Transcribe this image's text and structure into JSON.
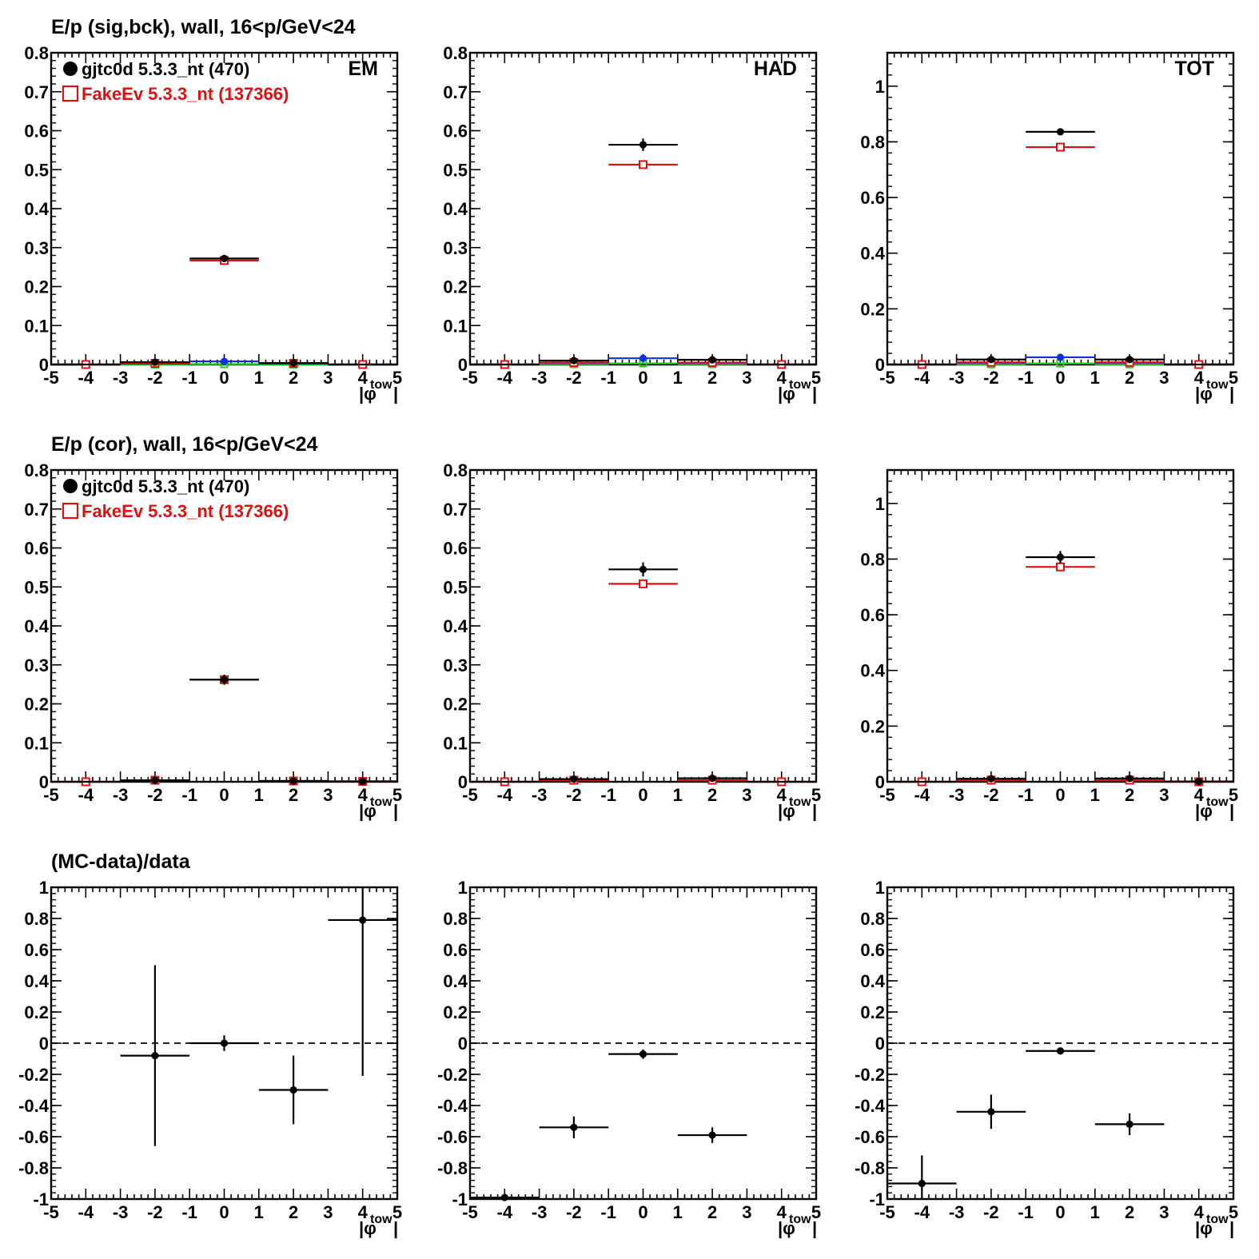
{
  "rows": [
    {
      "title": "E/p (sig,bck), wall, 16<p/GeV<24"
    },
    {
      "title": "E/p (cor), wall, 16<p/GeV<24"
    },
    {
      "title": "(MC-data)/data"
    }
  ],
  "legend": [
    {
      "label": "gjtc0d 5.3.3_nt (470)",
      "color": "#000000",
      "marker": "filled-circle"
    },
    {
      "label": "FakeEv 5.3.3_nt (137366)",
      "color": "#e01010",
      "marker": "open-square"
    }
  ],
  "x_axis_label": {
    "main": "|φ",
    "sub": "tow",
    "close": "|"
  },
  "colors": {
    "data": "#000000",
    "mc": "#e01010",
    "bck_data": "#1030e0",
    "bck_mc": "#20d020",
    "reference_line": "#000000"
  },
  "chart_data": [
    {
      "type": "scatter",
      "row": 0,
      "col": 0,
      "corner_label": "EM",
      "xlim": [
        -5,
        5
      ],
      "ylim": [
        0,
        0.8
      ],
      "xticks": [
        -5,
        -4,
        -3,
        -2,
        -1,
        0,
        1,
        2,
        3,
        4,
        5
      ],
      "yticks": [
        0,
        0.1,
        0.2,
        0.3,
        0.4,
        0.5,
        0.6,
        0.7,
        0.8
      ],
      "yticklabels": [
        "0",
        "0.1",
        "0.2",
        "0.3",
        "0.4",
        "0.5",
        "0.6",
        "0.7",
        "0.8"
      ],
      "show_legend": true,
      "series": [
        {
          "role": "data",
          "x": [
            -4,
            -2,
            0,
            2,
            4
          ],
          "y": [
            0,
            0.006,
            0.272,
            0.004,
            0
          ],
          "yerr": [
            0,
            0.002,
            0.006,
            0.002,
            0
          ]
        },
        {
          "role": "mc",
          "x": [
            -4,
            -2,
            0,
            2,
            4
          ],
          "y": [
            0,
            0.003,
            0.267,
            0.003,
            0
          ],
          "yerr": [
            0,
            0,
            0.002,
            0,
            0
          ]
        },
        {
          "role": "bck_data",
          "x": [
            -4,
            -2,
            0,
            2,
            4
          ],
          "y": [
            0,
            0.002,
            0.008,
            0.002,
            0
          ],
          "yerr": [
            0,
            0,
            0.001,
            0,
            0
          ]
        },
        {
          "role": "bck_mc",
          "x": [
            -4,
            -2,
            0,
            2,
            4
          ],
          "y": [
            0,
            0,
            0.001,
            0,
            0
          ],
          "yerr": [
            0,
            0,
            0,
            0,
            0
          ]
        }
      ]
    },
    {
      "type": "scatter",
      "row": 0,
      "col": 1,
      "corner_label": "HAD",
      "xlim": [
        -5,
        5
      ],
      "ylim": [
        0,
        0.8
      ],
      "xticks": [
        -5,
        -4,
        -3,
        -2,
        -1,
        0,
        1,
        2,
        3,
        4,
        5
      ],
      "yticks": [
        0,
        0.1,
        0.2,
        0.3,
        0.4,
        0.5,
        0.6,
        0.7,
        0.8
      ],
      "yticklabels": [
        "0",
        "0.1",
        "0.2",
        "0.3",
        "0.4",
        "0.5",
        "0.6",
        "0.7",
        "0.8"
      ],
      "show_legend": false,
      "series": [
        {
          "role": "data",
          "x": [
            -4,
            -2,
            0,
            2,
            4
          ],
          "y": [
            0,
            0.01,
            0.564,
            0.012,
            0
          ],
          "yerr": [
            0,
            0.003,
            0.016,
            0.003,
            0
          ]
        },
        {
          "role": "mc",
          "x": [
            -4,
            -2,
            0,
            2,
            4
          ],
          "y": [
            0,
            0.005,
            0.513,
            0.005,
            0
          ],
          "yerr": [
            0,
            0,
            0.003,
            0,
            0
          ]
        },
        {
          "role": "bck_data",
          "x": [
            -4,
            -2,
            0,
            2,
            4
          ],
          "y": [
            0,
            0.004,
            0.016,
            0.004,
            0
          ],
          "yerr": [
            0,
            0,
            0.002,
            0,
            0
          ]
        },
        {
          "role": "bck_mc",
          "x": [
            -4,
            -2,
            0,
            2,
            4
          ],
          "y": [
            0,
            0.001,
            0.003,
            0.001,
            0
          ],
          "yerr": [
            0,
            0,
            0,
            0,
            0
          ]
        }
      ]
    },
    {
      "type": "scatter",
      "row": 0,
      "col": 2,
      "corner_label": "TOT",
      "xlim": [
        -5,
        5
      ],
      "ylim": [
        0,
        1.12
      ],
      "xticks": [
        -5,
        -4,
        -3,
        -2,
        -1,
        0,
        1,
        2,
        3,
        4,
        5
      ],
      "yticks": [
        0,
        0.2,
        0.4,
        0.6,
        0.8,
        1
      ],
      "yticklabels": [
        "0",
        "0.2",
        "0.4",
        "0.6",
        "0.8",
        "1"
      ],
      "show_legend": false,
      "series": [
        {
          "role": "data",
          "x": [
            -4,
            -2,
            0,
            2,
            4
          ],
          "y": [
            0,
            0.018,
            0.836,
            0.018,
            0
          ],
          "yerr": [
            0,
            0.003,
            0.008,
            0.003,
            0
          ]
        },
        {
          "role": "mc",
          "x": [
            -4,
            -2,
            0,
            2,
            4
          ],
          "y": [
            0,
            0.008,
            0.781,
            0.008,
            0
          ],
          "yerr": [
            0,
            0,
            0.004,
            0,
            0
          ]
        },
        {
          "role": "bck_data",
          "x": [
            -4,
            -2,
            0,
            2,
            4
          ],
          "y": [
            0,
            0.006,
            0.026,
            0.006,
            0
          ],
          "yerr": [
            0,
            0,
            0.003,
            0,
            0
          ]
        },
        {
          "role": "bck_mc",
          "x": [
            -4,
            -2,
            0,
            2,
            4
          ],
          "y": [
            0,
            0.001,
            0.004,
            0.001,
            0
          ],
          "yerr": [
            0,
            0,
            0,
            0,
            0
          ]
        }
      ]
    },
    {
      "type": "scatter",
      "row": 1,
      "col": 0,
      "corner_label": "",
      "xlim": [
        -5,
        5
      ],
      "ylim": [
        0,
        0.8
      ],
      "xticks": [
        -5,
        -4,
        -3,
        -2,
        -1,
        0,
        1,
        2,
        3,
        4,
        5
      ],
      "yticks": [
        0,
        0.1,
        0.2,
        0.3,
        0.4,
        0.5,
        0.6,
        0.7,
        0.8
      ],
      "yticklabels": [
        "0",
        "0.1",
        "0.2",
        "0.3",
        "0.4",
        "0.5",
        "0.6",
        "0.7",
        "0.8"
      ],
      "show_legend": true,
      "series": [
        {
          "role": "data",
          "x": [
            -4,
            -2,
            0,
            2,
            4
          ],
          "y": [
            0,
            0.004,
            0.262,
            0.002,
            0.001
          ],
          "yerr": [
            0,
            0.003,
            0.013,
            0.002,
            0.002
          ]
        },
        {
          "role": "mc",
          "x": [
            -4,
            -2,
            0,
            2,
            4
          ],
          "y": [
            0,
            0.004,
            0.262,
            0.002,
            0.001
          ],
          "yerr": [
            0,
            0,
            0.002,
            0,
            0
          ]
        }
      ]
    },
    {
      "type": "scatter",
      "row": 1,
      "col": 1,
      "corner_label": "",
      "xlim": [
        -5,
        5
      ],
      "ylim": [
        0,
        0.8
      ],
      "xticks": [
        -5,
        -4,
        -3,
        -2,
        -1,
        0,
        1,
        2,
        3,
        4,
        5
      ],
      "yticks": [
        0,
        0.1,
        0.2,
        0.3,
        0.4,
        0.5,
        0.6,
        0.7,
        0.8
      ],
      "yticklabels": [
        "0",
        "0.1",
        "0.2",
        "0.3",
        "0.4",
        "0.5",
        "0.6",
        "0.7",
        "0.8"
      ],
      "show_legend": false,
      "series": [
        {
          "role": "data",
          "x": [
            -4,
            -2,
            0,
            2,
            4
          ],
          "y": [
            0,
            0.007,
            0.545,
            0.009,
            0
          ],
          "yerr": [
            0,
            0.004,
            0.018,
            0.004,
            0
          ]
        },
        {
          "role": "mc",
          "x": [
            -4,
            -2,
            0,
            2,
            4
          ],
          "y": [
            0,
            0.004,
            0.508,
            0.004,
            0
          ],
          "yerr": [
            0,
            0,
            0.003,
            0,
            0
          ]
        }
      ]
    },
    {
      "type": "scatter",
      "row": 1,
      "col": 2,
      "corner_label": "",
      "xlim": [
        -5,
        5
      ],
      "ylim": [
        0,
        1.12
      ],
      "xticks": [
        -5,
        -4,
        -3,
        -2,
        -1,
        0,
        1,
        2,
        3,
        4,
        5
      ],
      "yticks": [
        0,
        0.2,
        0.4,
        0.6,
        0.8,
        1
      ],
      "yticklabels": [
        "0",
        "0.2",
        "0.4",
        "0.6",
        "0.8",
        "1"
      ],
      "show_legend": false,
      "series": [
        {
          "role": "data",
          "x": [
            -4,
            -2,
            0,
            2,
            4
          ],
          "y": [
            0,
            0.011,
            0.807,
            0.012,
            0.001
          ],
          "yerr": [
            0,
            0.005,
            0.022,
            0.005,
            0
          ]
        },
        {
          "role": "mc",
          "x": [
            -4,
            -2,
            0,
            2,
            4
          ],
          "y": [
            0,
            0.006,
            0.772,
            0.006,
            0
          ],
          "yerr": [
            0,
            0,
            0.004,
            0,
            0
          ]
        }
      ]
    },
    {
      "type": "scatter",
      "row": 2,
      "col": 0,
      "corner_label": "",
      "xlim": [
        -5,
        5
      ],
      "ylim": [
        -1,
        1
      ],
      "xticks": [
        -5,
        -4,
        -3,
        -2,
        -1,
        0,
        1,
        2,
        3,
        4,
        5
      ],
      "yticks": [
        -1,
        -0.8,
        -0.6,
        -0.4,
        -0.2,
        0,
        0.2,
        0.4,
        0.6,
        0.8,
        1
      ],
      "yticklabels": [
        "-1",
        "-0.8",
        "-0.6",
        "-0.4",
        "-0.2",
        "0",
        "0.2",
        "0.4",
        "0.6",
        "0.8",
        "1"
      ],
      "show_legend": false,
      "reference_line": 0,
      "series": [
        {
          "role": "ratio",
          "x": [
            -2,
            0,
            2,
            4
          ],
          "y": [
            -0.08,
            0.0,
            -0.3,
            0.79
          ],
          "yerr": [
            0.58,
            0.05,
            0.22,
            1.0
          ]
        }
      ]
    },
    {
      "type": "scatter",
      "row": 2,
      "col": 1,
      "corner_label": "",
      "xlim": [
        -5,
        5
      ],
      "ylim": [
        -1,
        1
      ],
      "xticks": [
        -5,
        -4,
        -3,
        -2,
        -1,
        0,
        1,
        2,
        3,
        4,
        5
      ],
      "yticks": [
        -1,
        -0.8,
        -0.6,
        -0.4,
        -0.2,
        0,
        0.2,
        0.4,
        0.6,
        0.8,
        1
      ],
      "yticklabels": [
        "-1",
        "-0.8",
        "-0.6",
        "-0.4",
        "-0.2",
        "0",
        "0.2",
        "0.4",
        "0.6",
        "0.8",
        "1"
      ],
      "show_legend": false,
      "reference_line": 0,
      "series": [
        {
          "role": "ratio",
          "x": [
            -4,
            -2,
            0,
            2
          ],
          "y": [
            -0.99,
            -0.54,
            -0.07,
            -0.59
          ],
          "yerr": [
            0.01,
            0.07,
            0.03,
            0.05
          ]
        }
      ]
    },
    {
      "type": "scatter",
      "row": 2,
      "col": 2,
      "corner_label": "",
      "xlim": [
        -5,
        5
      ],
      "ylim": [
        -1,
        1
      ],
      "xticks": [
        -5,
        -4,
        -3,
        -2,
        -1,
        0,
        1,
        2,
        3,
        4,
        5
      ],
      "yticks": [
        -1,
        -0.8,
        -0.6,
        -0.4,
        -0.2,
        0,
        0.2,
        0.4,
        0.6,
        0.8,
        1
      ],
      "yticklabels": [
        "-1",
        "-0.8",
        "-0.6",
        "-0.4",
        "-0.2",
        "0",
        "0.2",
        "0.4",
        "0.6",
        "0.8",
        "1"
      ],
      "show_legend": false,
      "reference_line": 0,
      "series": [
        {
          "role": "ratio",
          "x": [
            -4,
            -2,
            0,
            2
          ],
          "y": [
            -0.9,
            -0.44,
            -0.05,
            -0.52
          ],
          "yerr": [
            0.18,
            0.11,
            0.02,
            0.07
          ]
        }
      ]
    }
  ]
}
